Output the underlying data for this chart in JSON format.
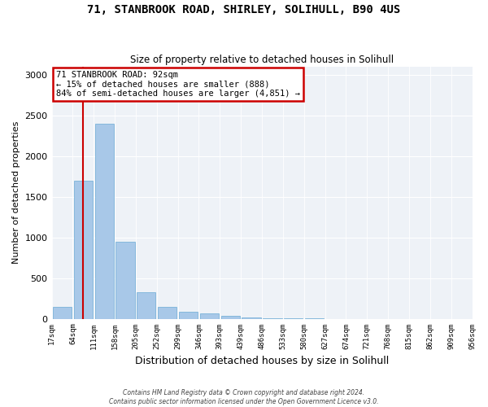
{
  "title1": "71, STANBROOK ROAD, SHIRLEY, SOLIHULL, B90 4US",
  "title2": "Size of property relative to detached houses in Solihull",
  "xlabel": "Distribution of detached houses by size in Solihull",
  "ylabel": "Number of detached properties",
  "footer1": "Contains HM Land Registry data © Crown copyright and database right 2024.",
  "footer2": "Contains public sector information licensed under the Open Government Licence v3.0.",
  "annotation_line1": "71 STANBROOK ROAD: 92sqm",
  "annotation_line2": "← 15% of detached houses are smaller (888)",
  "annotation_line3": "84% of semi-detached houses are larger (4,851) →",
  "bar_color": "#a8c8e8",
  "bar_edge_color": "#6aaad4",
  "red_line_color": "#cc0000",
  "annotation_box_edge": "#cc0000",
  "background_color": "#eef2f7",
  "tick_labels": [
    "17sqm",
    "64sqm",
    "111sqm",
    "158sqm",
    "205sqm",
    "252sqm",
    "299sqm",
    "346sqm",
    "393sqm",
    "439sqm",
    "486sqm",
    "533sqm",
    "580sqm",
    "627sqm",
    "674sqm",
    "721sqm",
    "768sqm",
    "815sqm",
    "862sqm",
    "909sqm",
    "956sqm"
  ],
  "bar_values": [
    150,
    1700,
    2400,
    950,
    330,
    150,
    90,
    70,
    40,
    15,
    5,
    2,
    1,
    0,
    0,
    0,
    0,
    0,
    0,
    0
  ],
  "red_line_x": 1.0,
  "ylim": [
    0,
    3100
  ],
  "yticks": [
    0,
    500,
    1000,
    1500,
    2000,
    2500,
    3000
  ]
}
